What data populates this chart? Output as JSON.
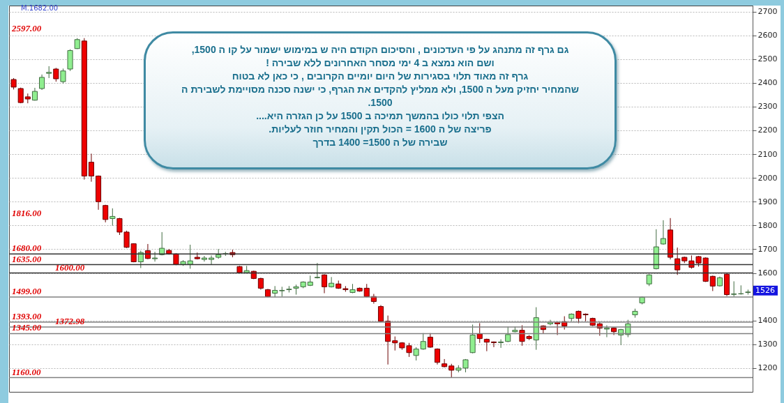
{
  "chart_data": {
    "type": "candlestick",
    "categories": [
      null,
      null,
      null,
      null,
      null,
      null,
      null,
      null,
      null,
      null,
      null,
      null,
      null,
      null,
      null,
      null,
      null,
      null,
      null,
      null,
      null,
      null,
      null,
      null,
      null,
      null,
      null,
      null,
      null,
      null,
      null,
      null,
      null,
      null,
      null,
      null,
      null,
      null,
      null,
      null,
      null,
      null,
      null,
      null,
      null,
      null,
      null,
      null,
      null,
      null,
      null,
      null,
      null,
      null,
      null,
      null,
      null,
      null,
      null,
      null,
      null,
      null,
      null,
      null,
      null,
      null,
      null,
      null,
      null,
      null,
      null,
      null,
      null,
      null,
      null,
      null,
      null,
      null,
      null,
      null,
      null,
      null,
      null,
      null,
      null,
      null,
      null,
      null,
      null,
      null,
      null,
      null,
      null,
      null,
      null,
      null,
      null,
      null,
      null,
      null,
      null,
      null,
      null,
      null,
      null
    ],
    "ohlc": [
      [
        2414,
        2420,
        2372,
        2382
      ],
      [
        2376,
        2380,
        2314,
        2317
      ],
      [
        2341,
        2355,
        2314,
        2332
      ],
      [
        2327,
        2379,
        2325,
        2364
      ],
      [
        2376,
        2435,
        2370,
        2423
      ],
      [
        2440,
        2470,
        2420,
        2444
      ],
      [
        2458,
        2463,
        2405,
        2417
      ],
      [
        2405,
        2460,
        2397,
        2450
      ],
      [
        2458,
        2541,
        2450,
        2536
      ],
      [
        2544,
        2588,
        2542,
        2582
      ],
      [
        2576,
        2588,
        1993,
        2008
      ],
      [
        2066,
        2102,
        1984,
        2008
      ],
      [
        2008,
        2010,
        1866,
        1900
      ],
      [
        1884,
        1887,
        1813,
        1825
      ],
      [
        1829,
        1872,
        1799,
        1838
      ],
      [
        1829,
        1832,
        1760,
        1772
      ],
      [
        1772,
        1778,
        1705,
        1708
      ],
      [
        1723,
        1725,
        1645,
        1647
      ],
      [
        1647,
        1694,
        1621,
        1686
      ],
      [
        1694,
        1722,
        1658,
        1661
      ],
      [
        1660,
        1689,
        1648,
        1663
      ],
      [
        1677,
        1772,
        1674,
        1704
      ],
      [
        1695,
        1701,
        1677,
        1680
      ],
      [
        1680,
        1683,
        1633,
        1636
      ],
      [
        1636,
        1654,
        1630,
        1648
      ],
      [
        1636,
        1719,
        1618,
        1651
      ],
      [
        1666,
        1686,
        1657,
        1660
      ],
      [
        1657,
        1672,
        1648,
        1663
      ],
      [
        1657,
        1674,
        1636,
        1663
      ],
      [
        1666,
        1701,
        1660,
        1677
      ],
      [
        1680,
        1689,
        1672,
        1681
      ],
      [
        1686,
        1698,
        1666,
        1677
      ],
      [
        1627,
        1630,
        1598,
        1601
      ],
      [
        1601,
        1630,
        1598,
        1610
      ],
      [
        1607,
        1610,
        1574,
        1577
      ],
      [
        1577,
        1580,
        1530,
        1536
      ],
      [
        1530,
        1533,
        1498,
        1501
      ],
      [
        1515,
        1545,
        1498,
        1527
      ],
      [
        1525,
        1542,
        1501,
        1527
      ],
      [
        1530,
        1545,
        1518,
        1532
      ],
      [
        1536,
        1551,
        1509,
        1542
      ],
      [
        1542,
        1565,
        1536,
        1562
      ],
      [
        1548,
        1589,
        1545,
        1562
      ],
      [
        1580,
        1642,
        1577,
        1582
      ],
      [
        1592,
        1595,
        1515,
        1542
      ],
      [
        1542,
        1583,
        1539,
        1557
      ],
      [
        1554,
        1568,
        1533,
        1536
      ],
      [
        1534,
        1545,
        1521,
        1530
      ],
      [
        1518,
        1554,
        1515,
        1530
      ],
      [
        1536,
        1539,
        1521,
        1524
      ],
      [
        1536,
        1554,
        1498,
        1501
      ],
      [
        1501,
        1512,
        1471,
        1480
      ],
      [
        1459,
        1465,
        1394,
        1397
      ],
      [
        1397,
        1421,
        1215,
        1312
      ],
      [
        1315,
        1333,
        1274,
        1306
      ],
      [
        1306,
        1309,
        1277,
        1285
      ],
      [
        1294,
        1306,
        1247,
        1265
      ],
      [
        1253,
        1288,
        1232,
        1280
      ],
      [
        1280,
        1347,
        1277,
        1312
      ],
      [
        1330,
        1347,
        1285,
        1288
      ],
      [
        1280,
        1283,
        1215,
        1224
      ],
      [
        1218,
        1238,
        1203,
        1206
      ],
      [
        1209,
        1218,
        1159,
        1191
      ],
      [
        1191,
        1212,
        1182,
        1200
      ],
      [
        1200,
        1238,
        1182,
        1235
      ],
      [
        1265,
        1383,
        1262,
        1339
      ],
      [
        1344,
        1389,
        1306,
        1324
      ],
      [
        1321,
        1324,
        1271,
        1309
      ],
      [
        1310,
        1312,
        1288,
        1307
      ],
      [
        1307,
        1321,
        1285,
        1310
      ],
      [
        1312,
        1374,
        1309,
        1341
      ],
      [
        1353,
        1374,
        1350,
        1359
      ],
      [
        1359,
        1380,
        1294,
        1312
      ],
      [
        1333,
        1339,
        1318,
        1324
      ],
      [
        1318,
        1456,
        1277,
        1412
      ],
      [
        1377,
        1380,
        1344,
        1362
      ],
      [
        1386,
        1403,
        1380,
        1392
      ],
      [
        1392,
        1395,
        1339,
        1386
      ],
      [
        1395,
        1418,
        1362,
        1377
      ],
      [
        1409,
        1430,
        1397,
        1427
      ],
      [
        1439,
        1442,
        1389,
        1409
      ],
      [
        1427,
        1430,
        1397,
        1424
      ],
      [
        1409,
        1412,
        1377,
        1380
      ],
      [
        1386,
        1395,
        1336,
        1368
      ],
      [
        1364,
        1380,
        1330,
        1368
      ],
      [
        1368,
        1371,
        1339,
        1353
      ],
      [
        1339,
        1365,
        1297,
        1362
      ],
      [
        1341,
        1403,
        1330,
        1386
      ],
      [
        1424,
        1450,
        1412,
        1439
      ],
      [
        1474,
        1501,
        1468,
        1498
      ],
      [
        1554,
        1595,
        1545,
        1592
      ],
      [
        1618,
        1784,
        1615,
        1710
      ],
      [
        1722,
        1822,
        1719,
        1745
      ],
      [
        1781,
        1831,
        1657,
        1666
      ],
      [
        1660,
        1707,
        1592,
        1613
      ],
      [
        1666,
        1669,
        1642,
        1651
      ],
      [
        1651,
        1674,
        1618,
        1624
      ],
      [
        1669,
        1672,
        1627,
        1642
      ],
      [
        1663,
        1666,
        1562,
        1565
      ],
      [
        1586,
        1589,
        1524,
        1545
      ],
      [
        1546,
        1585,
        1543,
        1580
      ],
      [
        1595,
        1598,
        1503,
        1509
      ],
      [
        1510,
        1565,
        1501,
        1512
      ],
      [
        1512,
        1548,
        1509,
        1513
      ],
      [
        1518,
        1530,
        1509,
        1520
      ]
    ],
    "colors": [
      "#ee0000",
      "#ee0000",
      "#ee0000",
      "#90ee90",
      "#90ee90",
      "#90ee90",
      "#ee0000",
      "#90ee90",
      "#90ee90",
      "#90ee90",
      "#ee0000",
      "#ee0000",
      "#ee0000",
      "#ee0000",
      "#90ee90",
      "#ee0000",
      "#ee0000",
      "#ee0000",
      "#90ee90",
      "#ee0000",
      "#90ee90",
      "#90ee90",
      "#ee0000",
      "#ee0000",
      "#90ee90",
      "#90ee90",
      "#ee0000",
      "#90ee90",
      "#90ee90",
      "#90ee90",
      "#90ee90",
      "#ee0000",
      "#ee0000",
      "#90ee90",
      "#ee0000",
      "#ee0000",
      "#ee0000",
      "#90ee90",
      "#90ee90",
      "#90ee90",
      "#90ee90",
      "#90ee90",
      "#90ee90",
      "#90ee90",
      "#ee0000",
      "#90ee90",
      "#ee0000",
      "#ee0000",
      "#90ee90",
      "#ee0000",
      "#ee0000",
      "#ee0000",
      "#ee0000",
      "#ee0000",
      "#ee0000",
      "#ee0000",
      "#ee0000",
      "#90ee90",
      "#90ee90",
      "#ee0000",
      "#ee0000",
      "#ee0000",
      "#ee0000",
      "#90ee90",
      "#90ee90",
      "#90ee90",
      "#ee0000",
      "#ee0000",
      "#ee0000",
      "#90ee90",
      "#90ee90",
      "#90ee90",
      "#ee0000",
      "#ee0000",
      "#90ee90",
      "#ee0000",
      "#90ee90",
      "#ee0000",
      "#ee0000",
      "#90ee90",
      "#ee0000",
      "#ee0000",
      "#ee0000",
      "#ee0000",
      "#90ee90",
      "#ee0000",
      "#90ee90",
      "#90ee90",
      "#90ee90",
      "#90ee90",
      "#90ee90",
      "#90ee90",
      "#90ee90",
      "#ee0000",
      "#ee0000",
      "#ee0000",
      "#ee0000",
      "#ee0000",
      "#ee0000",
      "#ee0000",
      "#90ee90",
      "#ee0000",
      "#90ee90",
      "#90ee90",
      "#90ee90"
    ],
    "ylim": [
      1100,
      2725
    ],
    "yticks": [
      1200,
      1300,
      1400,
      1600,
      1700,
      1800,
      1900,
      2000,
      2100,
      2200,
      2300,
      2400,
      2500,
      2600,
      2700
    ],
    "grid": "y",
    "ref_lines": [
      {
        "axis": "y",
        "value": 1680,
        "label": "1680.00",
        "color": "#333333"
      },
      {
        "axis": "y",
        "value": 1635,
        "label": "1635.00",
        "color": "#333333"
      },
      {
        "axis": "y",
        "value": 1600,
        "label": "1600.00",
        "color": "#333333"
      },
      {
        "axis": "y",
        "value": 1499,
        "label": "1499.00",
        "color": "#808080"
      },
      {
        "axis": "y",
        "value": 1393,
        "label": "1393.00",
        "color": "#808080"
      },
      {
        "axis": "y",
        "value": 1372.98,
        "label": "1372.98",
        "color": "#808080"
      },
      {
        "axis": "y",
        "value": 1345,
        "label": "1345.00",
        "color": "#808080"
      },
      {
        "axis": "y",
        "value": 1160,
        "label": "1160.00",
        "color": "#808080"
      }
    ],
    "annotations": [
      "M.1682.00",
      "גם גרף זה מתנהג על פי העדכונים , והסיכום הקודם היה ש במימוש ישמור על קו ה 1500,\nושם הוא נמצא ב 4 ימי מסחר האחרונים ללא שבירה !\nגרף זה מאוד תלוי בסגירות של היום יומיים הקרובים , כי כאן לא בטוח\nשהמחיר יחזיק מעל ה 1500, ולא ממליץ להקדים את הגרף, כי ישנה סכנה מסויימת לשבירת ה\n1500.\nהצפי תלוי כולו בהמשך תמיכה ב 1500 על כן הגזרה היא....\nפריצה של ה 1600 = הכול תקין והמחיר חוזר לעליות.\nשבירה של ה 1500= 1400 בדרך",
      {
        "text": "1526",
        "y": 1526
      },
      "2597.00",
      "1816.00"
    ]
  }
}
